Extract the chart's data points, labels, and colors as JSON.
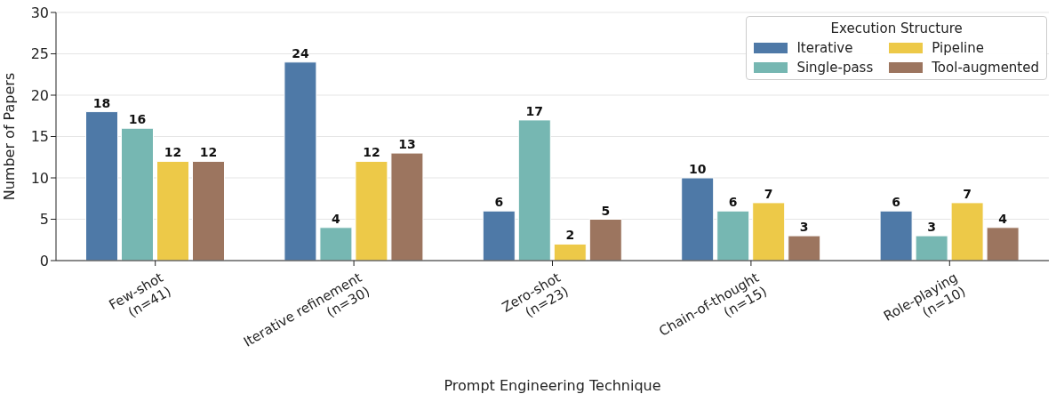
{
  "chart_data": {
    "type": "bar",
    "xlabel": "Prompt Engineering Technique",
    "ylabel": "Number of Papers",
    "legend_title": "Execution Structure",
    "categories": [
      "Few-shot\n(n=41)",
      "Iterative refinement\n(n=30)",
      "Zero-shot\n(n=23)",
      "Chain-of-thought\n(n=15)",
      "Role-playing\n(n=10)"
    ],
    "series": [
      {
        "name": "Iterative",
        "color": "#4e79a7",
        "values": [
          18,
          24,
          6,
          10,
          6
        ]
      },
      {
        "name": "Single-pass",
        "color": "#76b7b2",
        "values": [
          16,
          4,
          17,
          6,
          3
        ]
      },
      {
        "name": "Pipeline",
        "color": "#edc948",
        "values": [
          12,
          12,
          2,
          7,
          7
        ]
      },
      {
        "name": "Tool-augmented",
        "color": "#9c755f",
        "values": [
          12,
          13,
          5,
          3,
          4
        ]
      }
    ],
    "ylim": [
      0,
      30
    ],
    "yticks": [
      0,
      5,
      10,
      15,
      20,
      25,
      30
    ],
    "grid": "y",
    "legend": "top right",
    "data_labels": true
  }
}
